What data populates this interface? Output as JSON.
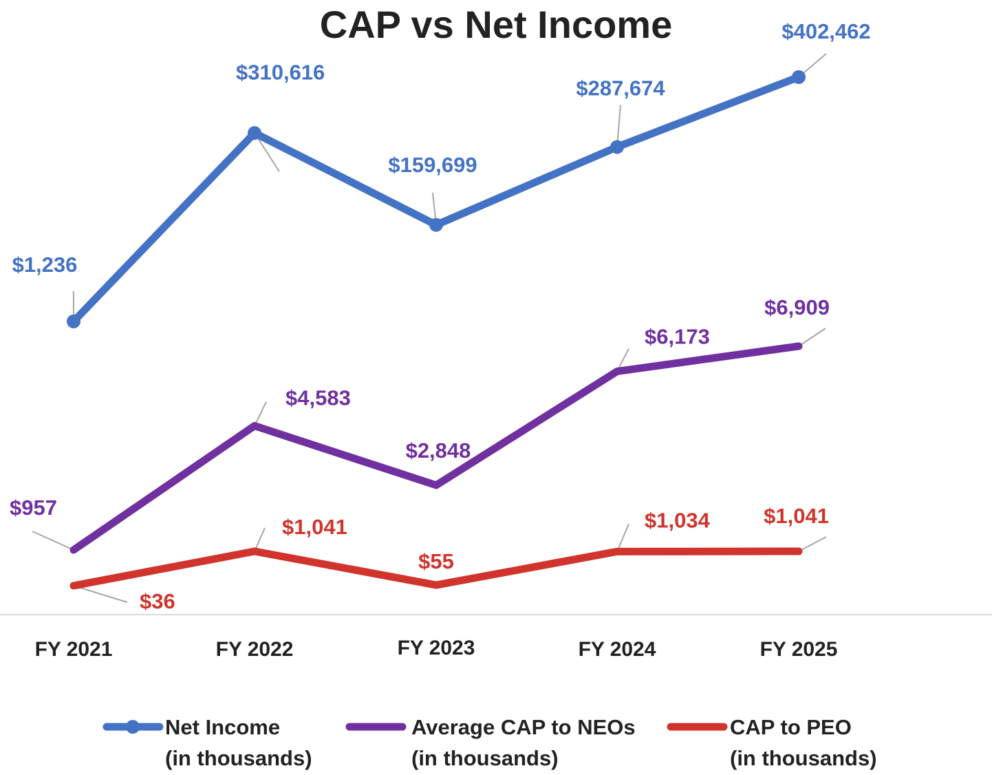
{
  "chart_data": {
    "type": "line",
    "title": "CAP vs Net Income",
    "categories": [
      "FY 2021",
      "FY 2022",
      "FY 2023",
      "FY 2024",
      "FY 2025"
    ],
    "series": [
      {
        "name": "Net Income",
        "name_line2": "(in thousands)",
        "color": "#4472C4",
        "markers": true,
        "values": [
          1236,
          310616,
          159699,
          287674,
          402462
        ],
        "labels": [
          "$1,236",
          "$310,616",
          "$159,699",
          "$287,674",
          "$402,462"
        ]
      },
      {
        "name": "Average CAP to NEOs",
        "name_line2": "(in thousands)",
        "color": "#7030A0",
        "markers": false,
        "values": [
          957,
          4583,
          2848,
          6173,
          6909
        ],
        "labels": [
          "$957",
          "$4,583",
          "$2,848",
          "$6,173",
          "$6,909"
        ]
      },
      {
        "name": "CAP to PEO",
        "name_line2": "(in thousands)",
        "color": "#D0342C",
        "markers": false,
        "values": [
          36,
          1041,
          55,
          1034,
          1041
        ],
        "labels": [
          "$36",
          "$1,041",
          "$55",
          "$1,034",
          "$1,041"
        ]
      }
    ],
    "xlabel": "",
    "ylabel": "",
    "grid": false,
    "legend": "bottom"
  }
}
